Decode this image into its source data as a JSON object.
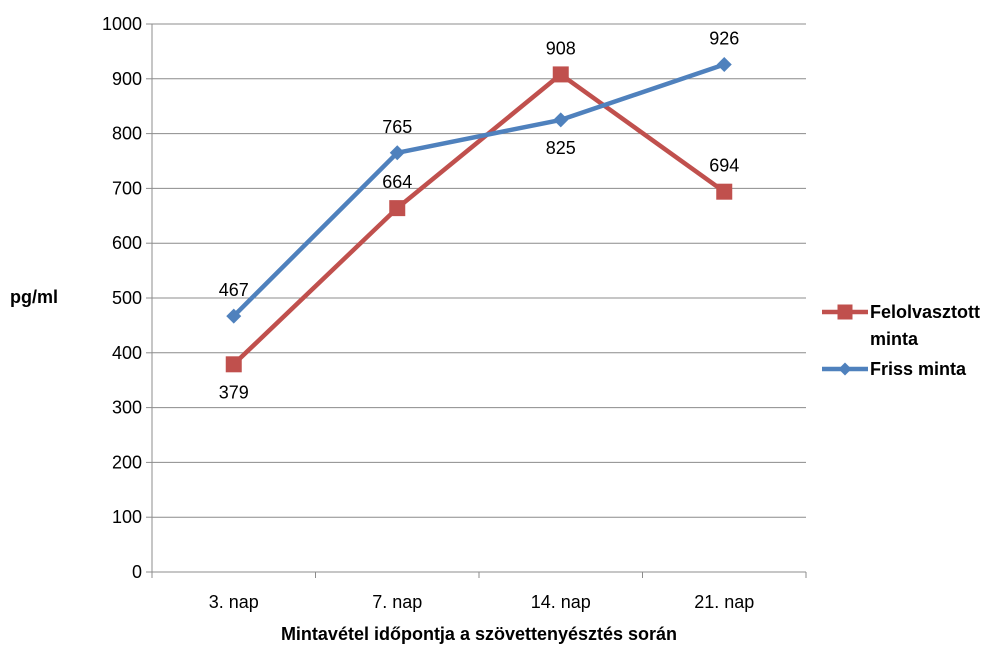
{
  "chart_data": {
    "type": "line",
    "categories": [
      "3. nap",
      "7. nap",
      "14. nap",
      "21. nap"
    ],
    "series": [
      {
        "name": "Felolvasztott minta",
        "legend_lines": [
          "Felolvasztott",
          "minta"
        ],
        "values": [
          379,
          664,
          908,
          694
        ],
        "color": "#C0504D",
        "marker": "square",
        "label_position": [
          "below",
          "above",
          "above",
          "above"
        ]
      },
      {
        "name": "Friss minta",
        "legend_lines": [
          "Friss minta"
        ],
        "values": [
          467,
          765,
          825,
          926
        ],
        "color": "#4F81BD",
        "marker": "diamond",
        "label_position": [
          "above",
          "above",
          "below",
          "above"
        ]
      }
    ],
    "xlabel": "Mintavétel időpontja a szövettenyésztés során",
    "ylabel": "pg/ml",
    "ylim": [
      0,
      1000
    ],
    "yticks": [
      0,
      100,
      200,
      300,
      400,
      500,
      600,
      700,
      800,
      900,
      1000
    ],
    "grid": true,
    "legend_position": "right"
  }
}
